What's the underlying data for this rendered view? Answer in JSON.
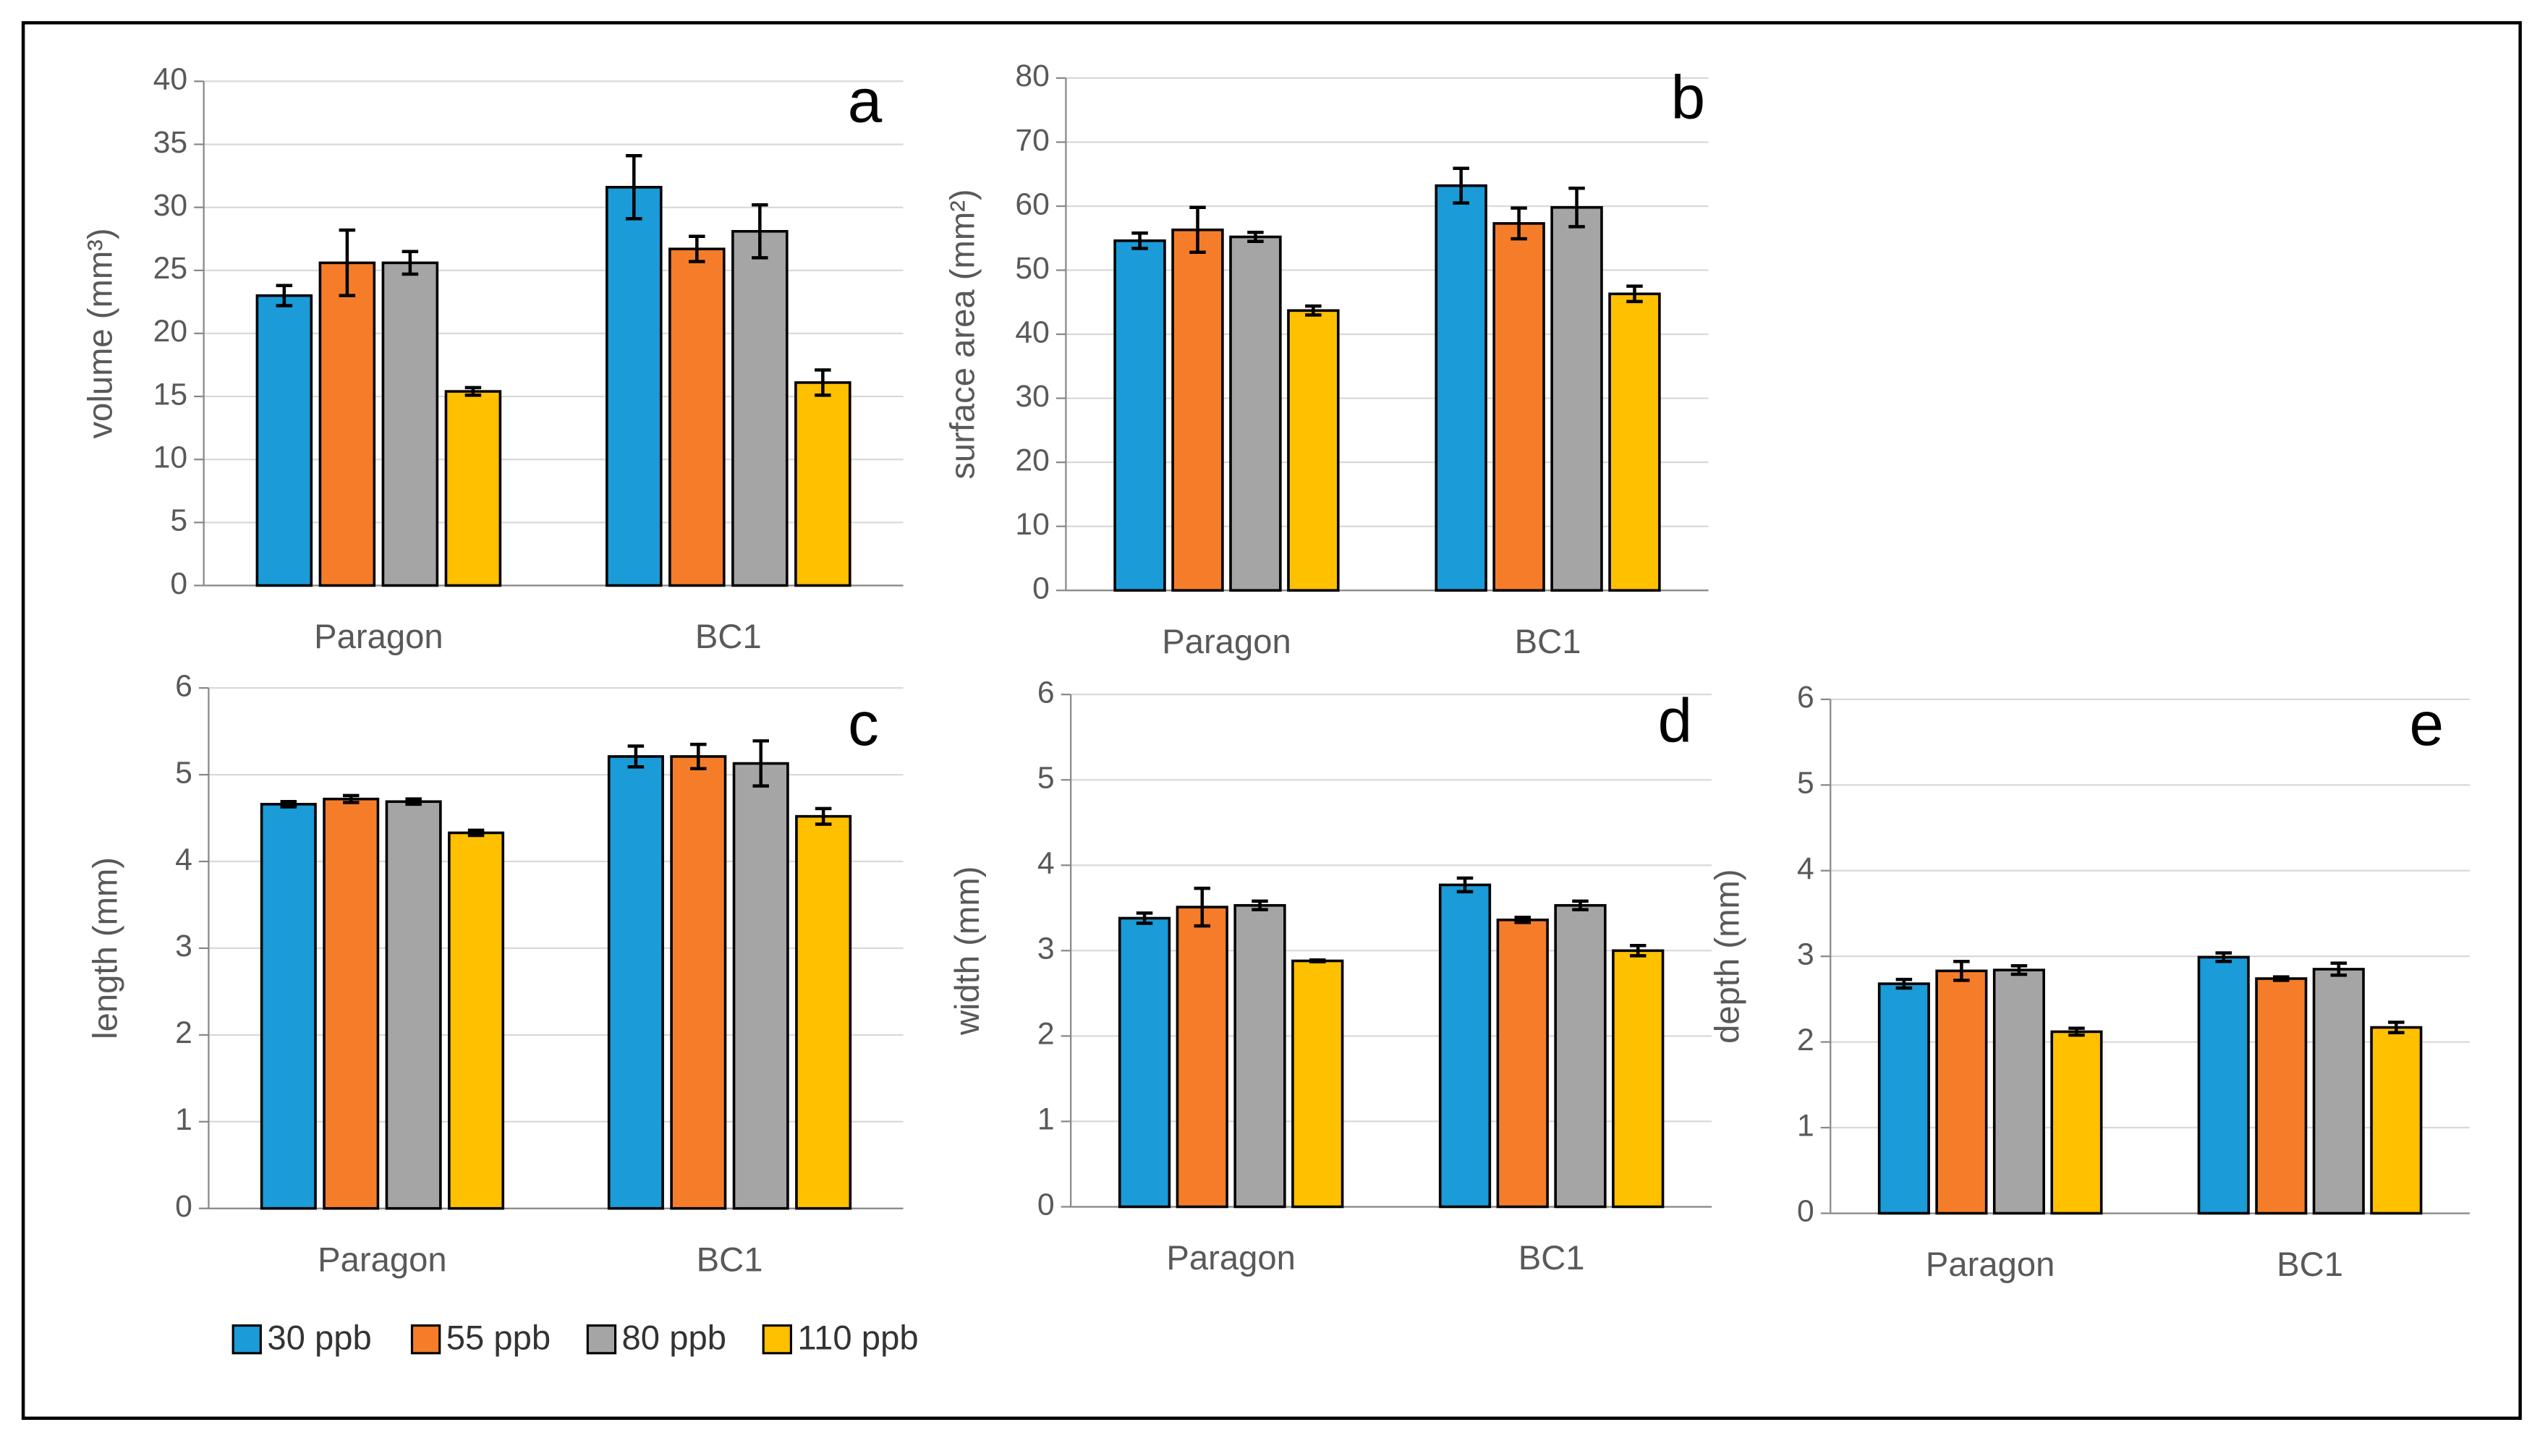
{
  "chart_data": [
    {
      "type": "bar",
      "label": "a",
      "ylabel": "volume (mm³)",
      "categories": [
        "Paragon",
        "BC1"
      ],
      "ylim": [
        0,
        40
      ],
      "yticks": [
        0,
        5,
        10,
        15,
        20,
        25,
        30,
        35,
        40
      ],
      "grid": true,
      "series": [
        {
          "name": "30 ppb",
          "color": "#1b9bd7",
          "values": [
            23,
            31.6
          ],
          "errors": [
            0.8,
            2.5
          ]
        },
        {
          "name": "55 ppb",
          "color": "#f57d2a",
          "values": [
            25.6,
            26.7
          ],
          "errors": [
            2.6,
            1.0
          ]
        },
        {
          "name": "80 ppb",
          "color": "#a5a5a5",
          "values": [
            25.6,
            28.1
          ],
          "errors": [
            0.9,
            2.1
          ]
        },
        {
          "name": "110 ppb",
          "color": "#ffc000",
          "values": [
            15.4,
            16.1
          ],
          "errors": [
            0.3,
            1.0
          ]
        }
      ]
    },
    {
      "type": "bar",
      "label": "b",
      "ylabel": "surface area (mm²)",
      "categories": [
        "Paragon",
        "BC1"
      ],
      "ylim": [
        0,
        80
      ],
      "yticks": [
        0,
        10,
        20,
        30,
        40,
        50,
        60,
        70,
        80
      ],
      "grid": true,
      "series": [
        {
          "color": "#1b9bd7",
          "values": [
            54.6,
            63.2
          ],
          "errors": [
            1.2,
            2.7
          ]
        },
        {
          "color": "#f57d2a",
          "values": [
            56.3,
            57.3
          ],
          "errors": [
            3.5,
            2.4
          ]
        },
        {
          "color": "#a5a5a5",
          "values": [
            55.2,
            59.8
          ],
          "errors": [
            0.7,
            3.0
          ]
        },
        {
          "color": "#ffc000",
          "values": [
            43.7,
            46.3
          ],
          "errors": [
            0.7,
            1.2
          ]
        }
      ]
    },
    {
      "type": "bar",
      "label": "c",
      "ylabel": "length (mm)",
      "categories": [
        "Paragon",
        "BC1"
      ],
      "ylim": [
        0,
        6
      ],
      "yticks": [
        0,
        1,
        2,
        3,
        4,
        5,
        6
      ],
      "grid": true,
      "series": [
        {
          "color": "#1b9bd7",
          "values": [
            4.66,
            5.21
          ],
          "errors": [
            0.03,
            0.12
          ]
        },
        {
          "color": "#f57d2a",
          "values": [
            4.72,
            5.21
          ],
          "errors": [
            0.04,
            0.14
          ]
        },
        {
          "color": "#a5a5a5",
          "values": [
            4.69,
            5.13
          ],
          "errors": [
            0.03,
            0.26
          ]
        },
        {
          "color": "#ffc000",
          "values": [
            4.33,
            4.52
          ],
          "errors": [
            0.03,
            0.09
          ]
        }
      ]
    },
    {
      "type": "bar",
      "label": "d",
      "ylabel": "width (mm)",
      "categories": [
        "Paragon",
        "BC1"
      ],
      "ylim": [
        0,
        6
      ],
      "yticks": [
        0,
        1,
        2,
        3,
        4,
        5,
        6
      ],
      "grid": true,
      "series": [
        {
          "color": "#1b9bd7",
          "values": [
            3.38,
            3.77
          ],
          "errors": [
            0.06,
            0.08
          ]
        },
        {
          "color": "#f57d2a",
          "values": [
            3.51,
            3.36
          ],
          "errors": [
            0.22,
            0.03
          ]
        },
        {
          "color": "#a5a5a5",
          "values": [
            3.53,
            3.53
          ],
          "errors": [
            0.05,
            0.05
          ]
        },
        {
          "color": "#ffc000",
          "values": [
            2.88,
            3.0
          ],
          "errors": [
            0.01,
            0.06
          ]
        }
      ]
    },
    {
      "type": "bar",
      "label": "e",
      "ylabel": "depth (mm)",
      "categories": [
        "Paragon",
        "BC1"
      ],
      "ylim": [
        0,
        6
      ],
      "yticks": [
        0,
        1,
        2,
        3,
        4,
        5,
        6
      ],
      "grid": true,
      "series": [
        {
          "color": "#1b9bd7",
          "values": [
            2.68,
            2.99
          ],
          "errors": [
            0.05,
            0.05
          ]
        },
        {
          "color": "#f57d2a",
          "values": [
            2.83,
            2.74
          ],
          "errors": [
            0.11,
            0.02
          ]
        },
        {
          "color": "#a5a5a5",
          "values": [
            2.84,
            2.85
          ],
          "errors": [
            0.05,
            0.07
          ]
        },
        {
          "color": "#ffc000",
          "values": [
            2.12,
            2.17
          ],
          "errors": [
            0.04,
            0.06
          ]
        }
      ]
    }
  ]
}
